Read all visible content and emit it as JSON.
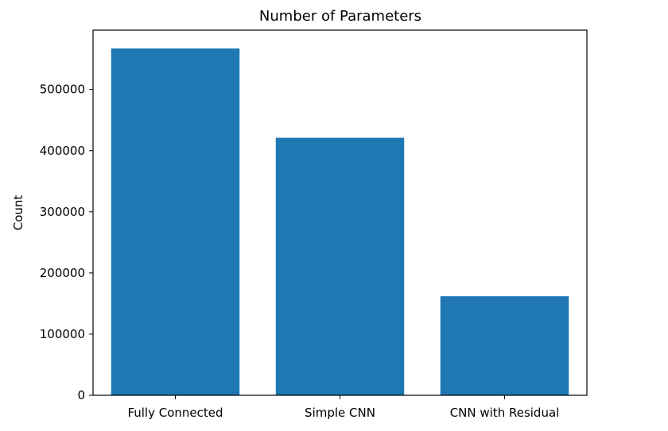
{
  "chart_data": {
    "type": "bar",
    "title": "Number of Parameters",
    "xlabel": "",
    "ylabel": "Count",
    "categories": [
      "Fully Connected",
      "Simple CNN",
      "CNN with Residual"
    ],
    "values": [
      567000,
      421000,
      162000
    ],
    "ylim": [
      0,
      597000
    ],
    "yticks": [
      0,
      100000,
      200000,
      300000,
      400000,
      500000
    ],
    "ytick_labels": [
      "0",
      "100000",
      "200000",
      "300000",
      "400000",
      "500000"
    ],
    "grid": false,
    "legend": "none",
    "bar_color": "#1f77b4"
  }
}
